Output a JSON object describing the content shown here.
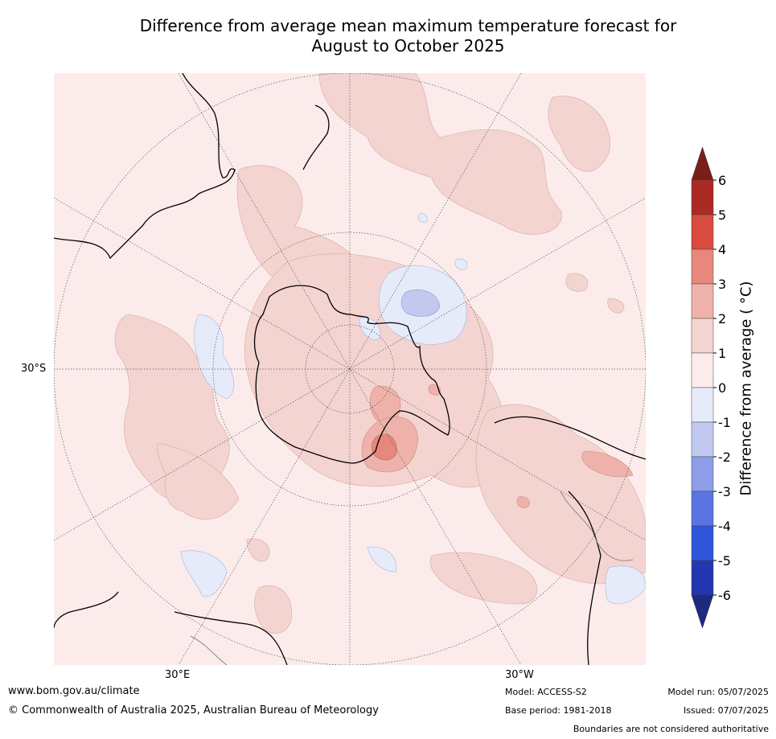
{
  "title_line1": "Difference from average mean maximum temperature forecast for",
  "title_line2": "August to October 2025",
  "map": {
    "lat_labels": [
      "30°S"
    ],
    "lon_labels": [
      "30°E",
      "30°W"
    ]
  },
  "colorbar": {
    "title": "Difference from average ( °C)",
    "levels": [
      "6",
      "5",
      "4",
      "3",
      "2",
      "1",
      "0",
      "-1",
      "-2",
      "-3",
      "-4",
      "-5",
      "-6"
    ],
    "colors": {
      "above_6": "#7b1e1a",
      "5_6": "#ad2a24",
      "4_5": "#d94a3f",
      "3_4": "#e8877c",
      "2_3": "#eeb2aa",
      "1_2": "#f4d4d0",
      "0_1": "#fbeceb",
      "m1_0": "#e6ebfa",
      "m2_m1": "#c1c9f1",
      "m3_m2": "#8e9dea",
      "m4_m3": "#5a75e0",
      "m5_m4": "#2f55da",
      "m6_m5": "#2437b0",
      "below_m6": "#1e2a80"
    }
  },
  "footer": {
    "website": "www.bom.gov.au/climate",
    "copyright": "© Commonwealth of Australia 2025, Australian Bureau of Meteorology",
    "model": "Model: ACCESS-S2",
    "base_period": "Base period: 1981-2018",
    "model_run": "Model run: 05/07/2025",
    "issued": "Issued: 07/07/2025",
    "disclaimer": "Boundaries are not considered authoritative"
  }
}
